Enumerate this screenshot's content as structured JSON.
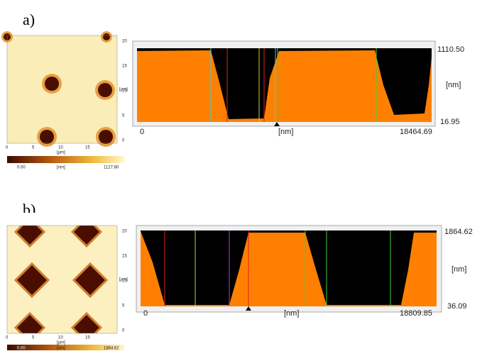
{
  "panels": [
    {
      "label": "a)",
      "image": {
        "y_ticks": [
          "20",
          "15",
          "10",
          "5",
          "0"
        ],
        "y_unit": "[µm]",
        "x_ticks": [
          "0",
          "5",
          "10",
          "15"
        ],
        "x_unit": "[µm]",
        "colorbar": [
          "0.00",
          "[nm]",
          "1127.80"
        ]
      },
      "profile": {
        "y_max": "1110.50",
        "y_unit": "[nm]",
        "y_min": "16.95",
        "x_min": "0",
        "x_unit": "[nm]",
        "x_max": "18464.69"
      }
    },
    {
      "label": "b)",
      "image": {
        "y_ticks": [
          "20",
          "15",
          "10",
          "5",
          "0"
        ],
        "y_unit": "[µm]",
        "x_ticks": [
          "0",
          "5",
          "10",
          "15"
        ],
        "x_unit": "[µm]",
        "colorbar": [
          "0.00",
          "[nm]",
          "1864.62"
        ]
      },
      "profile": {
        "y_max": "1864.62",
        "y_unit": "[nm]",
        "y_min": "36.09",
        "x_min": "0",
        "x_unit": "[nm]",
        "x_max": "18809.85"
      }
    }
  ]
}
